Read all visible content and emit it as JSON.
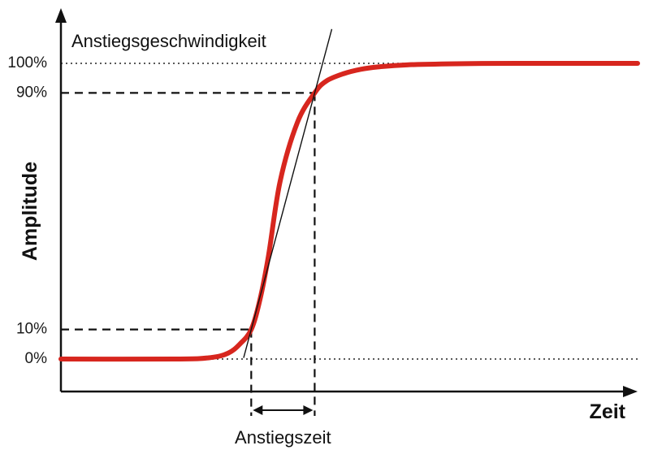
{
  "chart_data": {
    "type": "line",
    "title": "",
    "xlabel": "Zeit",
    "ylabel": "Amplitude",
    "y_ticks": [
      "0%",
      "10%",
      "90%",
      "100%"
    ],
    "y_tick_values": [
      0,
      10,
      90,
      100
    ],
    "ylim": [
      -10,
      120
    ],
    "xlim": [
      0,
      100
    ],
    "grid": false,
    "series": [
      {
        "color": "#d7261e",
        "x": [
          0,
          20,
          26,
          29,
          31,
          33,
          34.5,
          36,
          38,
          41,
          44,
          46,
          49,
          52,
          55,
          60,
          70,
          80,
          100
        ],
        "y": [
          0,
          0,
          0.5,
          2,
          5,
          10,
          20,
          35,
          60,
          80,
          90,
          94,
          96.5,
          98,
          98.8,
          99.5,
          99.9,
          100,
          100
        ]
      }
    ],
    "reference_lines": [
      {
        "y": 100,
        "style": "dotted"
      },
      {
        "y": 0,
        "style": "dotted"
      },
      {
        "y": 90,
        "style": "dashed"
      },
      {
        "y": 10,
        "style": "dashed"
      }
    ],
    "annotations": {
      "slope": "Anstiegsgeschwindigkeit",
      "rise_time": "Anstiegszeit"
    },
    "rise_points": {
      "t10": 33,
      "t90": 44
    }
  }
}
